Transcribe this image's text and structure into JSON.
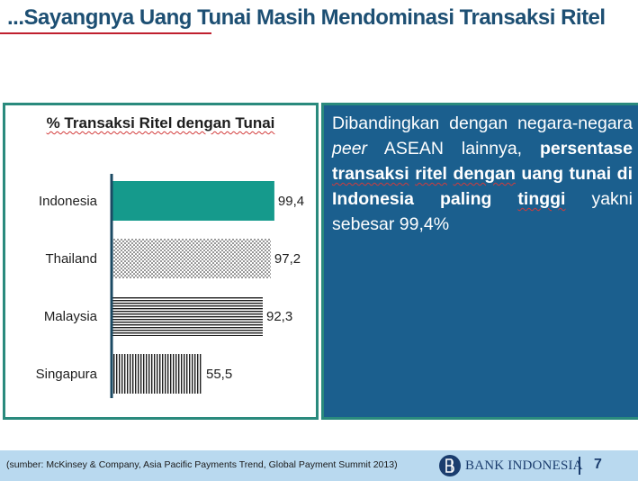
{
  "slide": {
    "title": "...Sayangnya Uang Tunai Masih Mendominasi Transaksi Ritel",
    "page_number": "7"
  },
  "chart_data": {
    "type": "bar",
    "orientation": "horizontal",
    "title": "% Transaksi Ritel dengan Tunai",
    "categories": [
      "Indonesia",
      "Thailand",
      "Malaysia",
      "Singapura"
    ],
    "values": [
      99.4,
      97.2,
      92.3,
      55.5
    ],
    "value_labels": [
      "99,4",
      "97,2",
      "92,3",
      "55,5"
    ],
    "xlim": [
      0,
      100
    ],
    "grid": false,
    "bar_styles": [
      {
        "fill": "solid",
        "color": "#159a8c"
      },
      {
        "fill": "dots",
        "color": "#1e1e1e"
      },
      {
        "fill": "horizontal-stripes",
        "color": "#1e1e1e"
      },
      {
        "fill": "vertical-stripes",
        "color": "#1e1e1e"
      }
    ]
  },
  "text_panel": {
    "part1": "Dibandingkan dengan negara-negara ",
    "part2_italic": "peer",
    "part3": " ASEAN lainnya, ",
    "bold_a": "persentase ",
    "bold_b": "transaksi",
    "bold_c": " ",
    "bold_d": "ritel",
    "bold_e": " ",
    "bold_f": "dengan",
    "bold_g": " uang tunai di Indonesia paling ",
    "bold_h": "tinggi",
    "part4": " yakni sebesar 99,4%"
  },
  "footer": {
    "source": "(sumber: McKinsey & Company, Asia Pacific Payments Trend, Global Payment Summit 2013)",
    "logo_text": "BANK INDONESIA",
    "logo_icon": "bank-indonesia-logo-icon"
  },
  "colors": {
    "title": "#1d4f73",
    "accent_red": "#c0202e",
    "teal": "#2a8a7d",
    "panel_blue": "#1b5f8e",
    "footer_bg": "#b9d9ef"
  }
}
